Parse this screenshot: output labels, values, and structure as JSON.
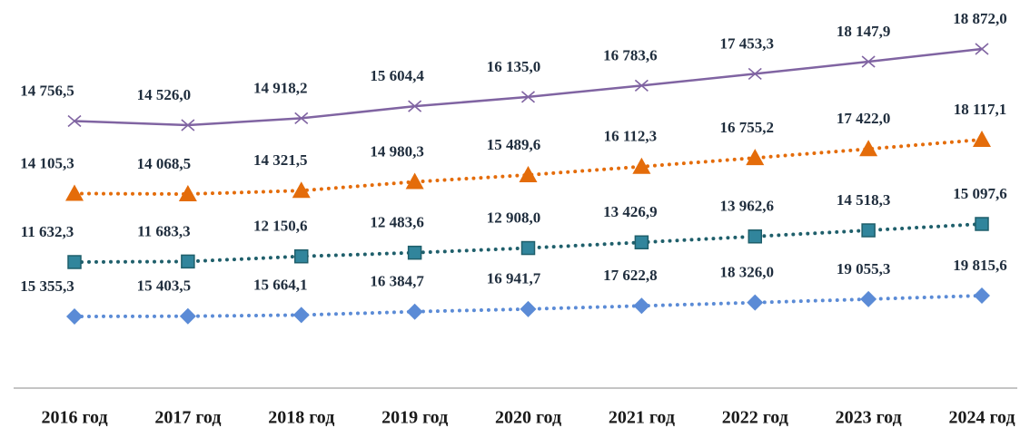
{
  "chart_data": {
    "type": "line",
    "categories": [
      "2016 год",
      "2017 год",
      "2018 год",
      "2019 год",
      "2020 год",
      "2021 год",
      "2022 год",
      "2023 год",
      "2024 год"
    ],
    "series": [
      {
        "color": "#8064a2",
        "marker": "x",
        "line": "solid",
        "values": [
          14756.5,
          14526.0,
          14918.2,
          15604.4,
          16135.0,
          16783.6,
          17453.3,
          18147.9,
          18872.0
        ],
        "value_labels": [
          "14 756,5",
          "14 526,0",
          "14 918,2",
          "15 604,4",
          "16 135,0",
          "16 783,6",
          "17 453,3",
          "18 147,9",
          "18 872,0"
        ]
      },
      {
        "color": "#e46c0a",
        "marker": "triangle",
        "line": "dotted",
        "values": [
          14105.3,
          14068.5,
          14321.5,
          14980.3,
          15489.6,
          16112.3,
          16755.2,
          17422.0,
          18117.1
        ],
        "value_labels": [
          "14 105,3",
          "14 068,5",
          "14 321,5",
          "14 980,3",
          "15 489,6",
          "16 112,3",
          "16 755,2",
          "17 422,0",
          "18 117,1"
        ]
      },
      {
        "color": "#1f5f6b",
        "marker": "square",
        "line": "dotted",
        "values": [
          11632.3,
          11683.3,
          12150.6,
          12483.6,
          12908.0,
          13426.9,
          13962.6,
          14518.3,
          15097.6
        ],
        "value_labels": [
          "11 632,3",
          "11 683,3",
          "12 150,6",
          "12 483,6",
          "12 908,0",
          "13 426,9",
          "13 962,6",
          "14 518,3",
          "15 097,6"
        ]
      },
      {
        "color": "#5b8bd6",
        "marker": "diamond",
        "line": "dotted",
        "values": [
          15355.3,
          15403.5,
          15664.1,
          16384.7,
          16941.7,
          17622.8,
          18326.0,
          19055.3,
          19815.6
        ],
        "value_labels": [
          "15 355,3",
          "15 403,5",
          "15 664,1",
          "16 384,7",
          "16 941,7",
          "17 622,8",
          "18 326,0",
          "19 055,3",
          "19 815,6"
        ]
      }
    ]
  }
}
